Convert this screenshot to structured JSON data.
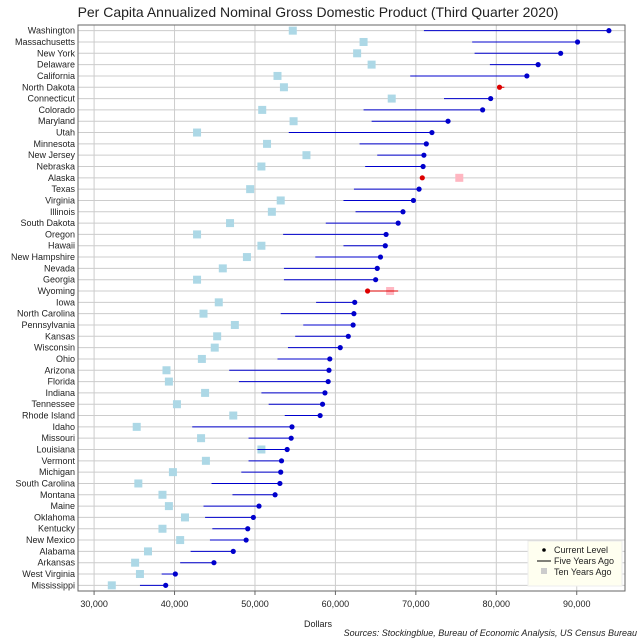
{
  "chart_data": {
    "type": "scatter",
    "title": "Per Capita Annualized Nominal Gross Domestic Product (Third Quarter 2020)",
    "xlabel": "Dollars",
    "xlim": [
      28000,
      96000
    ],
    "xticks": [
      "30,000",
      "40,000",
      "50,000",
      "60,000",
      "70,000",
      "80,000",
      "90,000"
    ],
    "xtick_values": [
      30000,
      40000,
      50000,
      60000,
      70000,
      80000,
      90000
    ],
    "grid": true,
    "legend_position": "bottom-right",
    "legend": [
      "Current Level",
      "Five Years Ago",
      "Ten Years Ago"
    ],
    "source": "Sources: Stockingblue, Bureau of Economic Analysis, US Census Bureau",
    "colors": {
      "rising": "#0000cc",
      "falling": "#dd0000",
      "ten_years_rising": "#add8e6",
      "ten_years_falling": "#ffb6c1",
      "grid": "#cccccc"
    },
    "series_fields": [
      "state",
      "current",
      "five_years_ago",
      "ten_years_ago"
    ],
    "rows": [
      [
        "Washington",
        94000,
        71000,
        54700
      ],
      [
        "Massachusetts",
        90100,
        77000,
        63500
      ],
      [
        "New York",
        88000,
        77300,
        62700
      ],
      [
        "Delaware",
        85200,
        79200,
        64500
      ],
      [
        "California",
        83800,
        69300,
        52800
      ],
      [
        "North Dakota",
        80400,
        81000,
        53600
      ],
      [
        "Connecticut",
        79300,
        73500,
        67000
      ],
      [
        "Colorado",
        78300,
        63500,
        50900
      ],
      [
        "Maryland",
        74000,
        64500,
        54800
      ],
      [
        "Utah",
        72000,
        54200,
        42800
      ],
      [
        "Minnesota",
        71300,
        63000,
        51500
      ],
      [
        "New Jersey",
        71000,
        65200,
        56400
      ],
      [
        "Nebraska",
        70900,
        63700,
        50800
      ],
      [
        "Alaska",
        70800,
        70900,
        75400
      ],
      [
        "Texas",
        70400,
        62300,
        49400
      ],
      [
        "Virginia",
        69700,
        61000,
        53200
      ],
      [
        "Illinois",
        68400,
        62500,
        52100
      ],
      [
        "South Dakota",
        67800,
        58800,
        46900
      ],
      [
        "Oregon",
        66300,
        53500,
        42800
      ],
      [
        "Hawaii",
        66200,
        61000,
        50800
      ],
      [
        "New Hampshire",
        65600,
        57500,
        49000
      ],
      [
        "Nevada",
        65200,
        53600,
        46000
      ],
      [
        "Georgia",
        65000,
        53600,
        42800
      ],
      [
        "Wyoming",
        64000,
        67800,
        66800
      ],
      [
        "Iowa",
        62400,
        57600,
        45500
      ],
      [
        "North Carolina",
        62300,
        53200,
        43600
      ],
      [
        "Pennsylvania",
        62200,
        56000,
        47500
      ],
      [
        "Kansas",
        61600,
        55000,
        45300
      ],
      [
        "Wisconsin",
        60600,
        54100,
        45000
      ],
      [
        "Ohio",
        59300,
        52800,
        43400
      ],
      [
        "Arizona",
        59200,
        46800,
        39000
      ],
      [
        "Florida",
        59100,
        48000,
        39300
      ],
      [
        "Indiana",
        58700,
        50800,
        43800
      ],
      [
        "Tennessee",
        58400,
        51700,
        40300
      ],
      [
        "Rhode Island",
        58100,
        53700,
        47300
      ],
      [
        "Idaho",
        54600,
        42200,
        35300
      ],
      [
        "Missouri",
        54500,
        49200,
        43300
      ],
      [
        "Louisiana",
        54000,
        50300,
        50800
      ],
      [
        "Vermont",
        53300,
        49200,
        43900
      ],
      [
        "Michigan",
        53200,
        48300,
        39800
      ],
      [
        "South Carolina",
        53100,
        44600,
        35500
      ],
      [
        "Montana",
        52500,
        47200,
        38500
      ],
      [
        "Maine",
        50500,
        43600,
        39300
      ],
      [
        "Oklahoma",
        49800,
        43800,
        41300
      ],
      [
        "Kentucky",
        49100,
        44700,
        38500
      ],
      [
        "New Mexico",
        48900,
        44400,
        40700
      ],
      [
        "Alabama",
        47300,
        42000,
        36700
      ],
      [
        "Arkansas",
        44900,
        40700,
        35100
      ],
      [
        "West Virginia",
        40100,
        38400,
        35700
      ],
      [
        "Mississippi",
        38900,
        35700,
        32200
      ]
    ]
  }
}
